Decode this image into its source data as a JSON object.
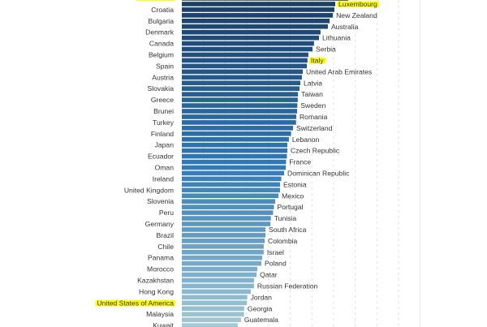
{
  "chart_data": {
    "type": "bar",
    "orientation": "horizontal",
    "title": "",
    "xlabel": "",
    "ylabel": "",
    "xlim": [
      0,
      11
    ],
    "grid": true,
    "grid_style": "dashed vertical",
    "color_scale": [
      "#1b3d63",
      "#2e78b5",
      "#a3c9d4"
    ],
    "highlight_color": "#ffff00",
    "highlighted": [
      "",
      "Luxembourg",
      "Italy",
      "United States of America"
    ],
    "categories": [
      "",
      "Luxembourg",
      "Croatia",
      "New Zealand",
      "Bulgaria",
      "Australia",
      "Denmark",
      "Lithuania",
      "Canada",
      "Serbia",
      "Belgium",
      "Italy",
      "Spain",
      "United Arab Emirates",
      "Austria",
      "Latvia",
      "Slovakia",
      "Taiwan",
      "Greece",
      "Sweden",
      "Brunei",
      "Romania",
      "Turkey",
      "Switzerland",
      "Finland",
      "Lebanon",
      "Japan",
      "Czech Republic",
      "Ecuador",
      "France",
      "Oman",
      "Dominican Republic",
      "Ireland",
      "Estonia",
      "United Kingdom",
      "Mexico",
      "Slovenia",
      "Portugal",
      "Peru",
      "Tunisia",
      "Germany",
      "South Africa",
      "Brazil",
      "Colombia",
      "Chile",
      "Israel",
      "Panama",
      "Poland",
      "Morocco",
      "Qatar",
      "Kazakhstan",
      "Russian Federation",
      "Hong Kong",
      "Jordan",
      "United States of America",
      "Georgia",
      "Malaysia",
      "Guatemala",
      "Kuwait"
    ],
    "values": [
      7.68,
      7.08,
      7.04,
      6.97,
      6.82,
      6.74,
      6.4,
      6.33,
      6.1,
      6.03,
      5.84,
      5.8,
      5.77,
      5.58,
      5.54,
      5.47,
      5.43,
      5.36,
      5.35,
      5.33,
      5.32,
      5.28,
      5.27,
      5.13,
      5.04,
      4.94,
      4.87,
      4.87,
      4.85,
      4.81,
      4.8,
      4.72,
      4.59,
      4.53,
      4.53,
      4.46,
      4.31,
      4.25,
      4.21,
      4.11,
      4.09,
      3.86,
      3.86,
      3.82,
      3.78,
      3.78,
      3.71,
      3.67,
      3.48,
      3.45,
      3.33,
      3.33,
      3.18,
      3.02,
      3.0,
      2.88,
      2.87,
      2.73,
      2.58
    ]
  }
}
